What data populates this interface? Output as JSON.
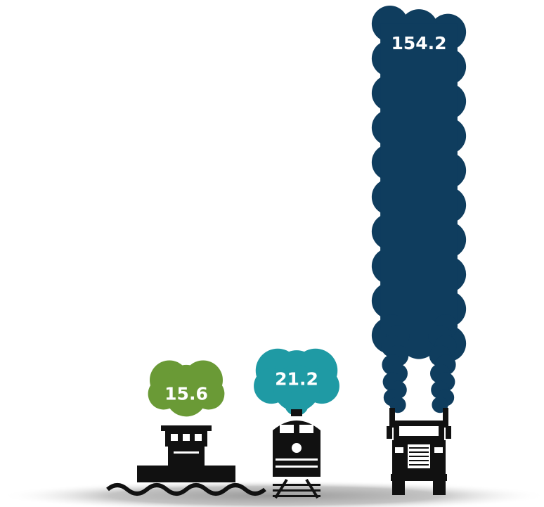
{
  "chart_data": {
    "type": "bar",
    "categories": [
      "",
      "",
      ""
    ],
    "series": [
      {
        "values": [
          15.6,
          21.2,
          154.2
        ]
      }
    ],
    "data_labels": [
      "15.6",
      "21.2",
      "154.2"
    ],
    "colors": [
      "#6a9a36",
      "#1f9aa4",
      "#0f3d5e"
    ],
    "icons": [
      "barge-icon",
      "locomotive-icon",
      "truck-icon"
    ],
    "title": "",
    "xlabel": "",
    "ylabel": "",
    "grid": false,
    "legend": "none"
  }
}
